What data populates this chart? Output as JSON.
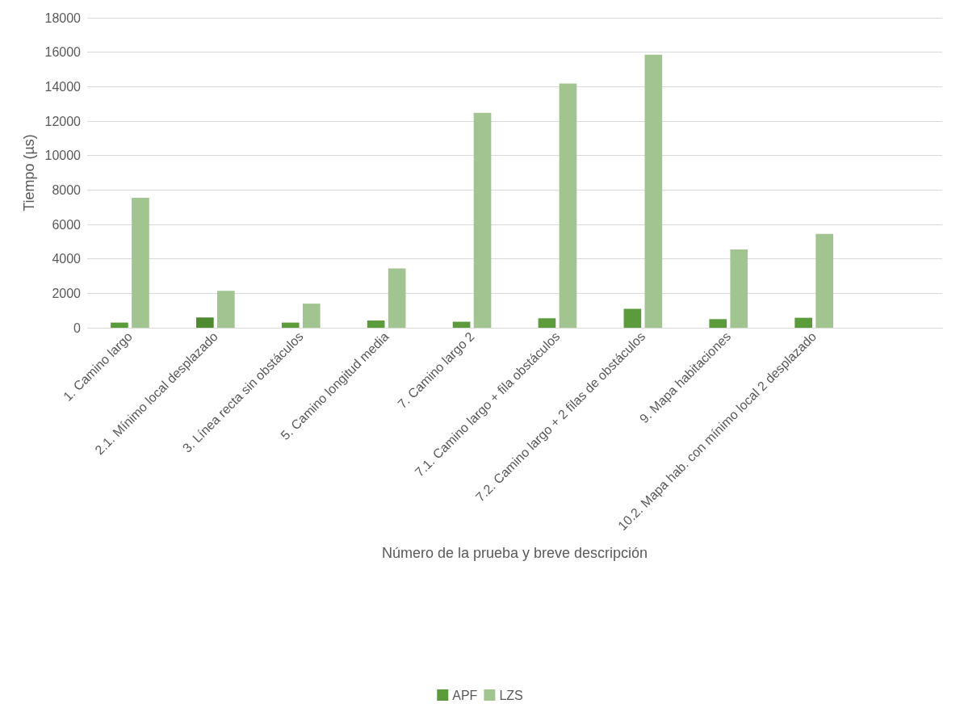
{
  "chart_data": {
    "type": "bar",
    "xlabel": "Número de la prueba y breve descripción",
    "ylabel": "Tiempo (µs)",
    "categories": [
      "1. Camino largo",
      "2.1. Mínimo local desplazado",
      "3. Línea recta sin obstáculos",
      "5. Camino longitud media",
      "7. Camino largo 2",
      "7.1. Camino largo + fila obstáculos",
      "7.2. Camino largo + 2 filas de obstáculos",
      "9. Mapa habitaciones",
      "10.2. Mapa hab. con mínimo local 2 desplazado",
      null
    ],
    "series": [
      {
        "name": "APF",
        "color": "#5b9b3c",
        "colors": [
          "#5b9b3c",
          "#4f8a30",
          "#5b9b3c",
          "#5b9b3c",
          "#5b9b3c",
          "#5b9b3c",
          "#5b9b3c",
          "#5b9b3c",
          "#5b9b3c",
          null
        ],
        "values": [
          300,
          600,
          300,
          420,
          350,
          550,
          1100,
          500,
          580,
          null
        ]
      },
      {
        "name": "LZS",
        "color": "#a2c490",
        "values": [
          7550,
          2150,
          1400,
          3450,
          12480,
          14180,
          15850,
          4550,
          5450,
          null
        ]
      }
    ],
    "ylim": [
      0,
      18000
    ],
    "yticks": [
      0,
      2000,
      4000,
      6000,
      8000,
      10000,
      12000,
      14000,
      16000,
      18000
    ],
    "grid": "y",
    "legend": "bottom"
  }
}
